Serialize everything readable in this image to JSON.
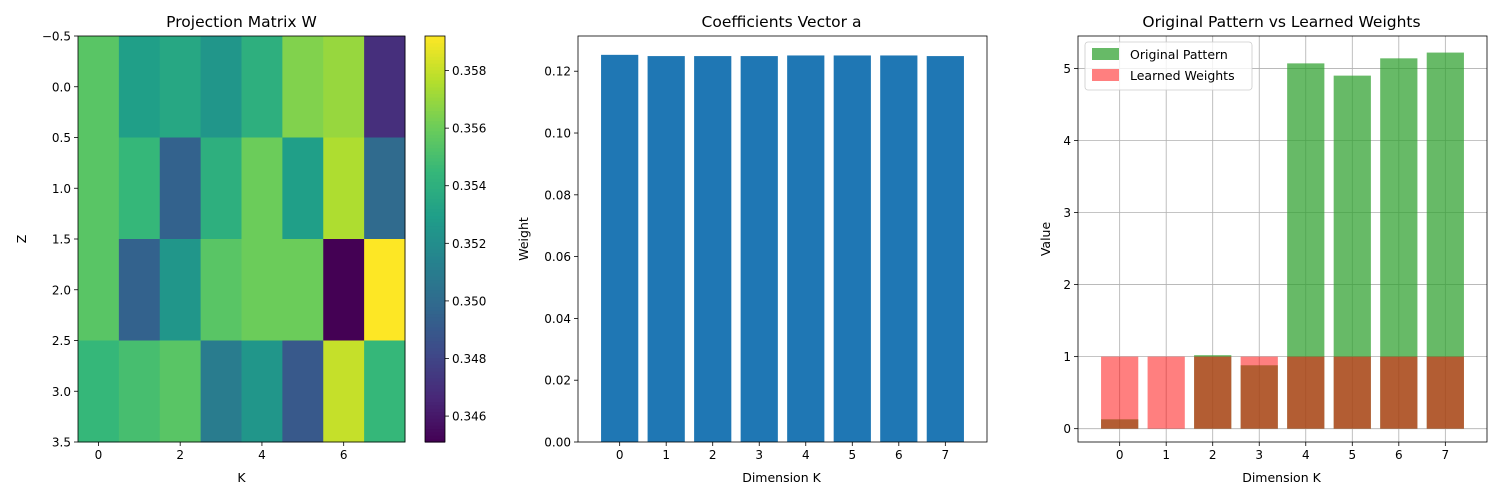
{
  "chart_data": [
    {
      "type": "heatmap",
      "title": "Projection Matrix W",
      "xlabel": "K",
      "ylabel": "Z",
      "x_ticks": [
        "0",
        "2",
        "4",
        "6"
      ],
      "y_ticks": [
        "−0.5",
        "0.0",
        "0.5",
        "1.0",
        "1.5",
        "2.0",
        "2.5",
        "3.0",
        "3.5"
      ],
      "colorbar_ticks": [
        "0.346",
        "0.348",
        "0.350",
        "0.352",
        "0.354",
        "0.356",
        "0.358"
      ],
      "colorbar_range": [
        0.3451,
        0.3592
      ],
      "colormap": "viridis",
      "values": [
        [
          0.3555,
          0.353,
          0.3535,
          0.3525,
          0.354,
          0.3565,
          0.357,
          0.347
        ],
        [
          0.3555,
          0.3545,
          0.3495,
          0.354,
          0.356,
          0.353,
          0.3575,
          0.35
        ],
        [
          0.3555,
          0.3495,
          0.3525,
          0.3555,
          0.356,
          0.356,
          0.3451,
          0.3592
        ],
        [
          0.3545,
          0.355,
          0.3555,
          0.351,
          0.3525,
          0.349,
          0.358,
          0.3545
        ]
      ]
    },
    {
      "type": "bar",
      "title": "Coefficients Vector a",
      "xlabel": "Dimension K",
      "ylabel": "Weight",
      "categories": [
        "0",
        "1",
        "2",
        "3",
        "4",
        "5",
        "6",
        "7"
      ],
      "values": [
        0.1253,
        0.1249,
        0.1249,
        0.1249,
        0.1251,
        0.1251,
        0.1251,
        0.1249
      ],
      "ylim": [
        0,
        0.1314
      ],
      "y_ticks": [
        "0.00",
        "0.02",
        "0.04",
        "0.06",
        "0.08",
        "0.10",
        "0.12"
      ],
      "color": "#1f77b4",
      "grid": false
    },
    {
      "type": "bar",
      "title": "Original Pattern vs Learned Weights",
      "xlabel": "Dimension K",
      "ylabel": "Value",
      "categories": [
        "0",
        "1",
        "2",
        "3",
        "4",
        "5",
        "6",
        "7"
      ],
      "ylim": [
        -0.185,
        5.45
      ],
      "y_ticks": [
        "0",
        "1",
        "2",
        "3",
        "4",
        "5"
      ],
      "grid": true,
      "legend_position": "top-left",
      "series": [
        {
          "name": "Original Pattern",
          "values": [
            0.13,
            0.0,
            1.02,
            0.88,
            5.07,
            4.9,
            5.14,
            5.22
          ],
          "color": "#2ca02c",
          "opacity": 0.72
        },
        {
          "name": "Learned Weights",
          "values": [
            1.0,
            1.0,
            1.0,
            1.0,
            1.0,
            1.0,
            1.0,
            1.0
          ],
          "color": "#ff0000",
          "opacity": 0.5
        }
      ]
    }
  ]
}
